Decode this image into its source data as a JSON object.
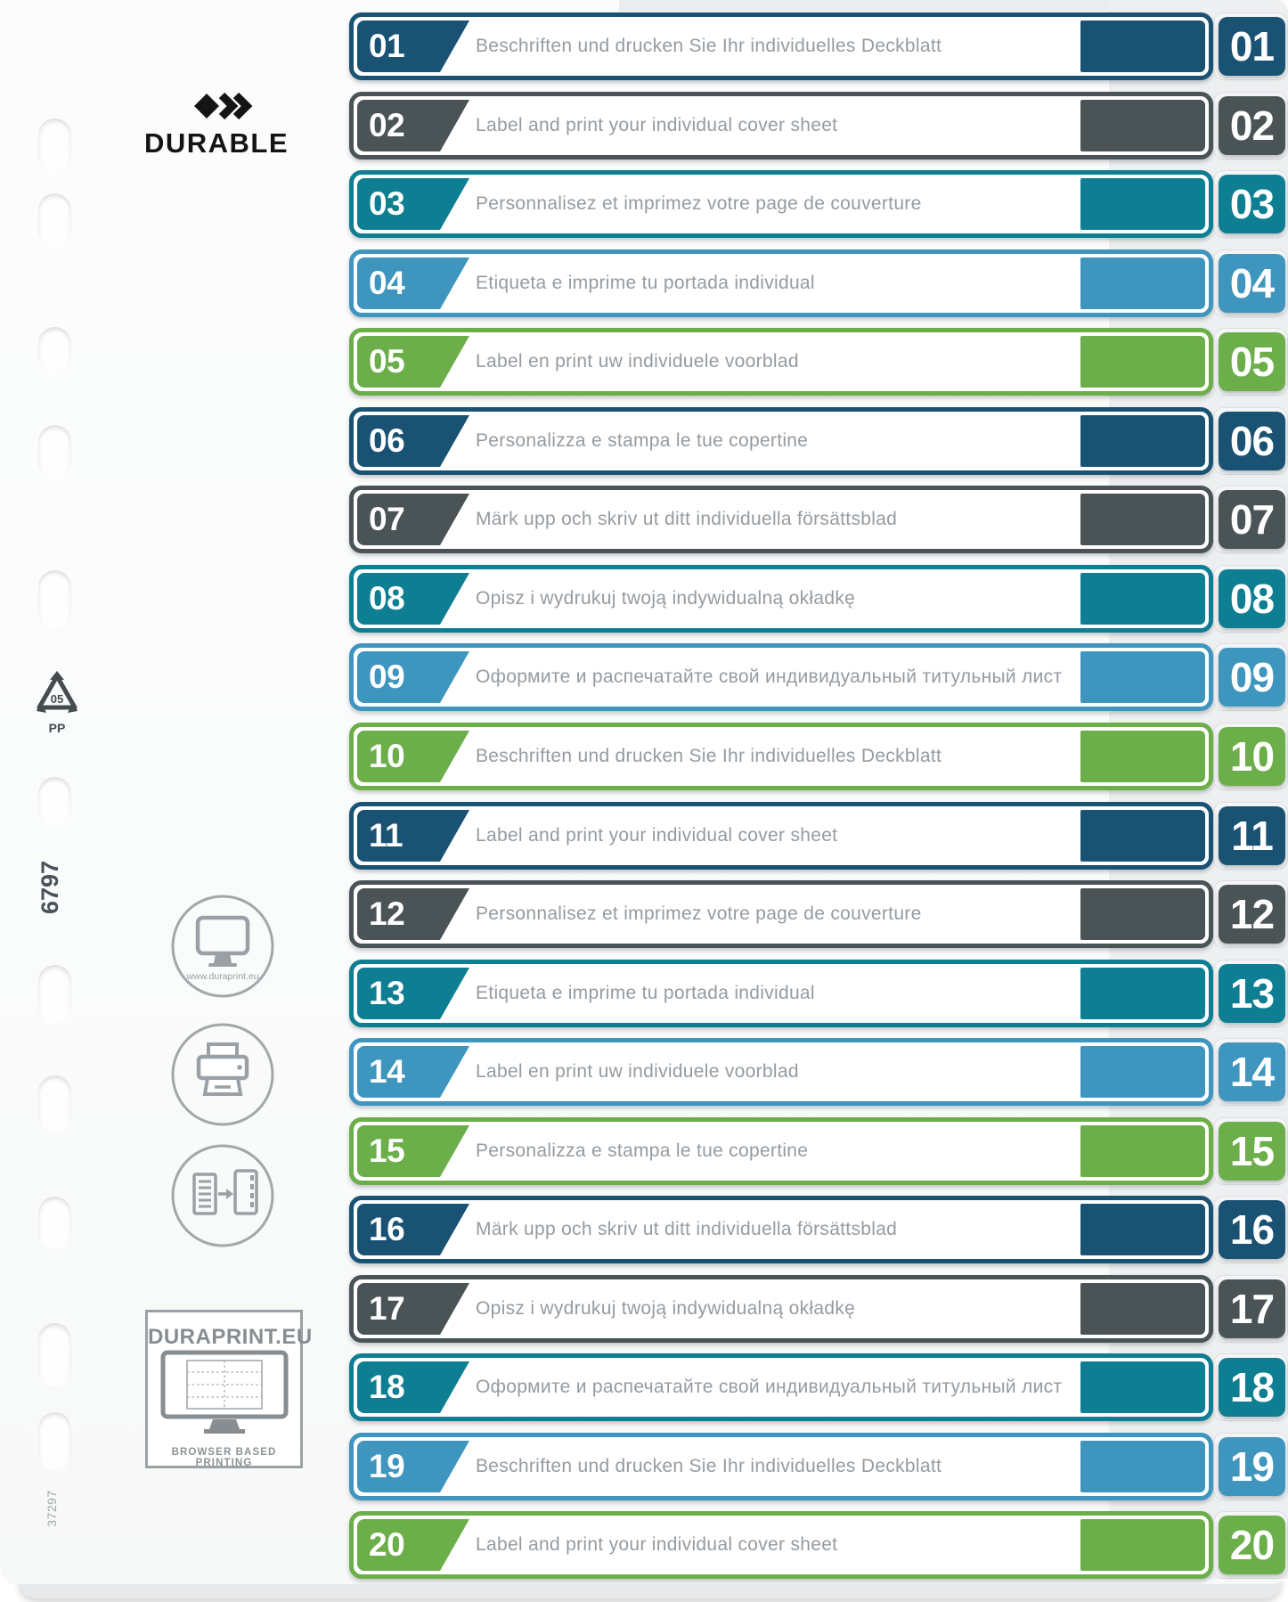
{
  "brand": {
    "name": "DURABLE"
  },
  "colors": {
    "navy": "#1a5274",
    "gray": "#4a5456",
    "teal": "#0e7e92",
    "blue": "#3e95be",
    "green": "#6cae4a"
  },
  "rows": [
    {
      "num": "01",
      "color": "navy",
      "text": "Beschriften und drucken Sie Ihr individuelles Deckblatt"
    },
    {
      "num": "02",
      "color": "gray",
      "text": "Label and print your individual cover sheet"
    },
    {
      "num": "03",
      "color": "teal",
      "text": "Personnalisez et imprimez votre page de couverture"
    },
    {
      "num": "04",
      "color": "blue",
      "text": "Etiqueta e imprime tu portada individual"
    },
    {
      "num": "05",
      "color": "green",
      "text": "Label en print uw individuele voorblad"
    },
    {
      "num": "06",
      "color": "navy",
      "text": "Personalizza e stampa le tue copertine"
    },
    {
      "num": "07",
      "color": "gray",
      "text": "Märk upp och skriv ut ditt individuella försättsblad"
    },
    {
      "num": "08",
      "color": "teal",
      "text": "Opisz i wydrukuj twoją indywidualną okładkę"
    },
    {
      "num": "09",
      "color": "blue",
      "text": "Оформите и распечатайте свой индивидуальный титульный лист"
    },
    {
      "num": "10",
      "color": "green",
      "text": "Beschriften und drucken Sie Ihr individuelles Deckblatt"
    },
    {
      "num": "11",
      "color": "navy",
      "text": "Label and print your individual cover sheet"
    },
    {
      "num": "12",
      "color": "gray",
      "text": "Personnalisez et imprimez votre page de couverture"
    },
    {
      "num": "13",
      "color": "teal",
      "text": "Etiqueta e imprime tu portada individual"
    },
    {
      "num": "14",
      "color": "blue",
      "text": "Label en print uw individuele voorblad"
    },
    {
      "num": "15",
      "color": "green",
      "text": "Personalizza e stampa le tue copertine"
    },
    {
      "num": "16",
      "color": "navy",
      "text": "Märk upp och skriv ut ditt individuella försättsblad"
    },
    {
      "num": "17",
      "color": "gray",
      "text": "Opisz i wydrukuj twoją indywidualną okładkę"
    },
    {
      "num": "18",
      "color": "teal",
      "text": "Оформите и распечатайте свой индивидуальный титульный лист"
    },
    {
      "num": "19",
      "color": "blue",
      "text": "Beschriften und drucken Sie Ihr individuelles Deckblatt"
    },
    {
      "num": "20",
      "color": "green",
      "text": "Label and print your individual cover sheet"
    }
  ],
  "side": {
    "recycle_number": "05",
    "recycle_material": "PP",
    "product_code": "6797",
    "order_code": "37297",
    "duraprint_url": "www.duraprint.eu",
    "duraprint_title": "DURAPRINT.EU",
    "duraprint_caption": "BROWSER BASED PRINTING"
  }
}
